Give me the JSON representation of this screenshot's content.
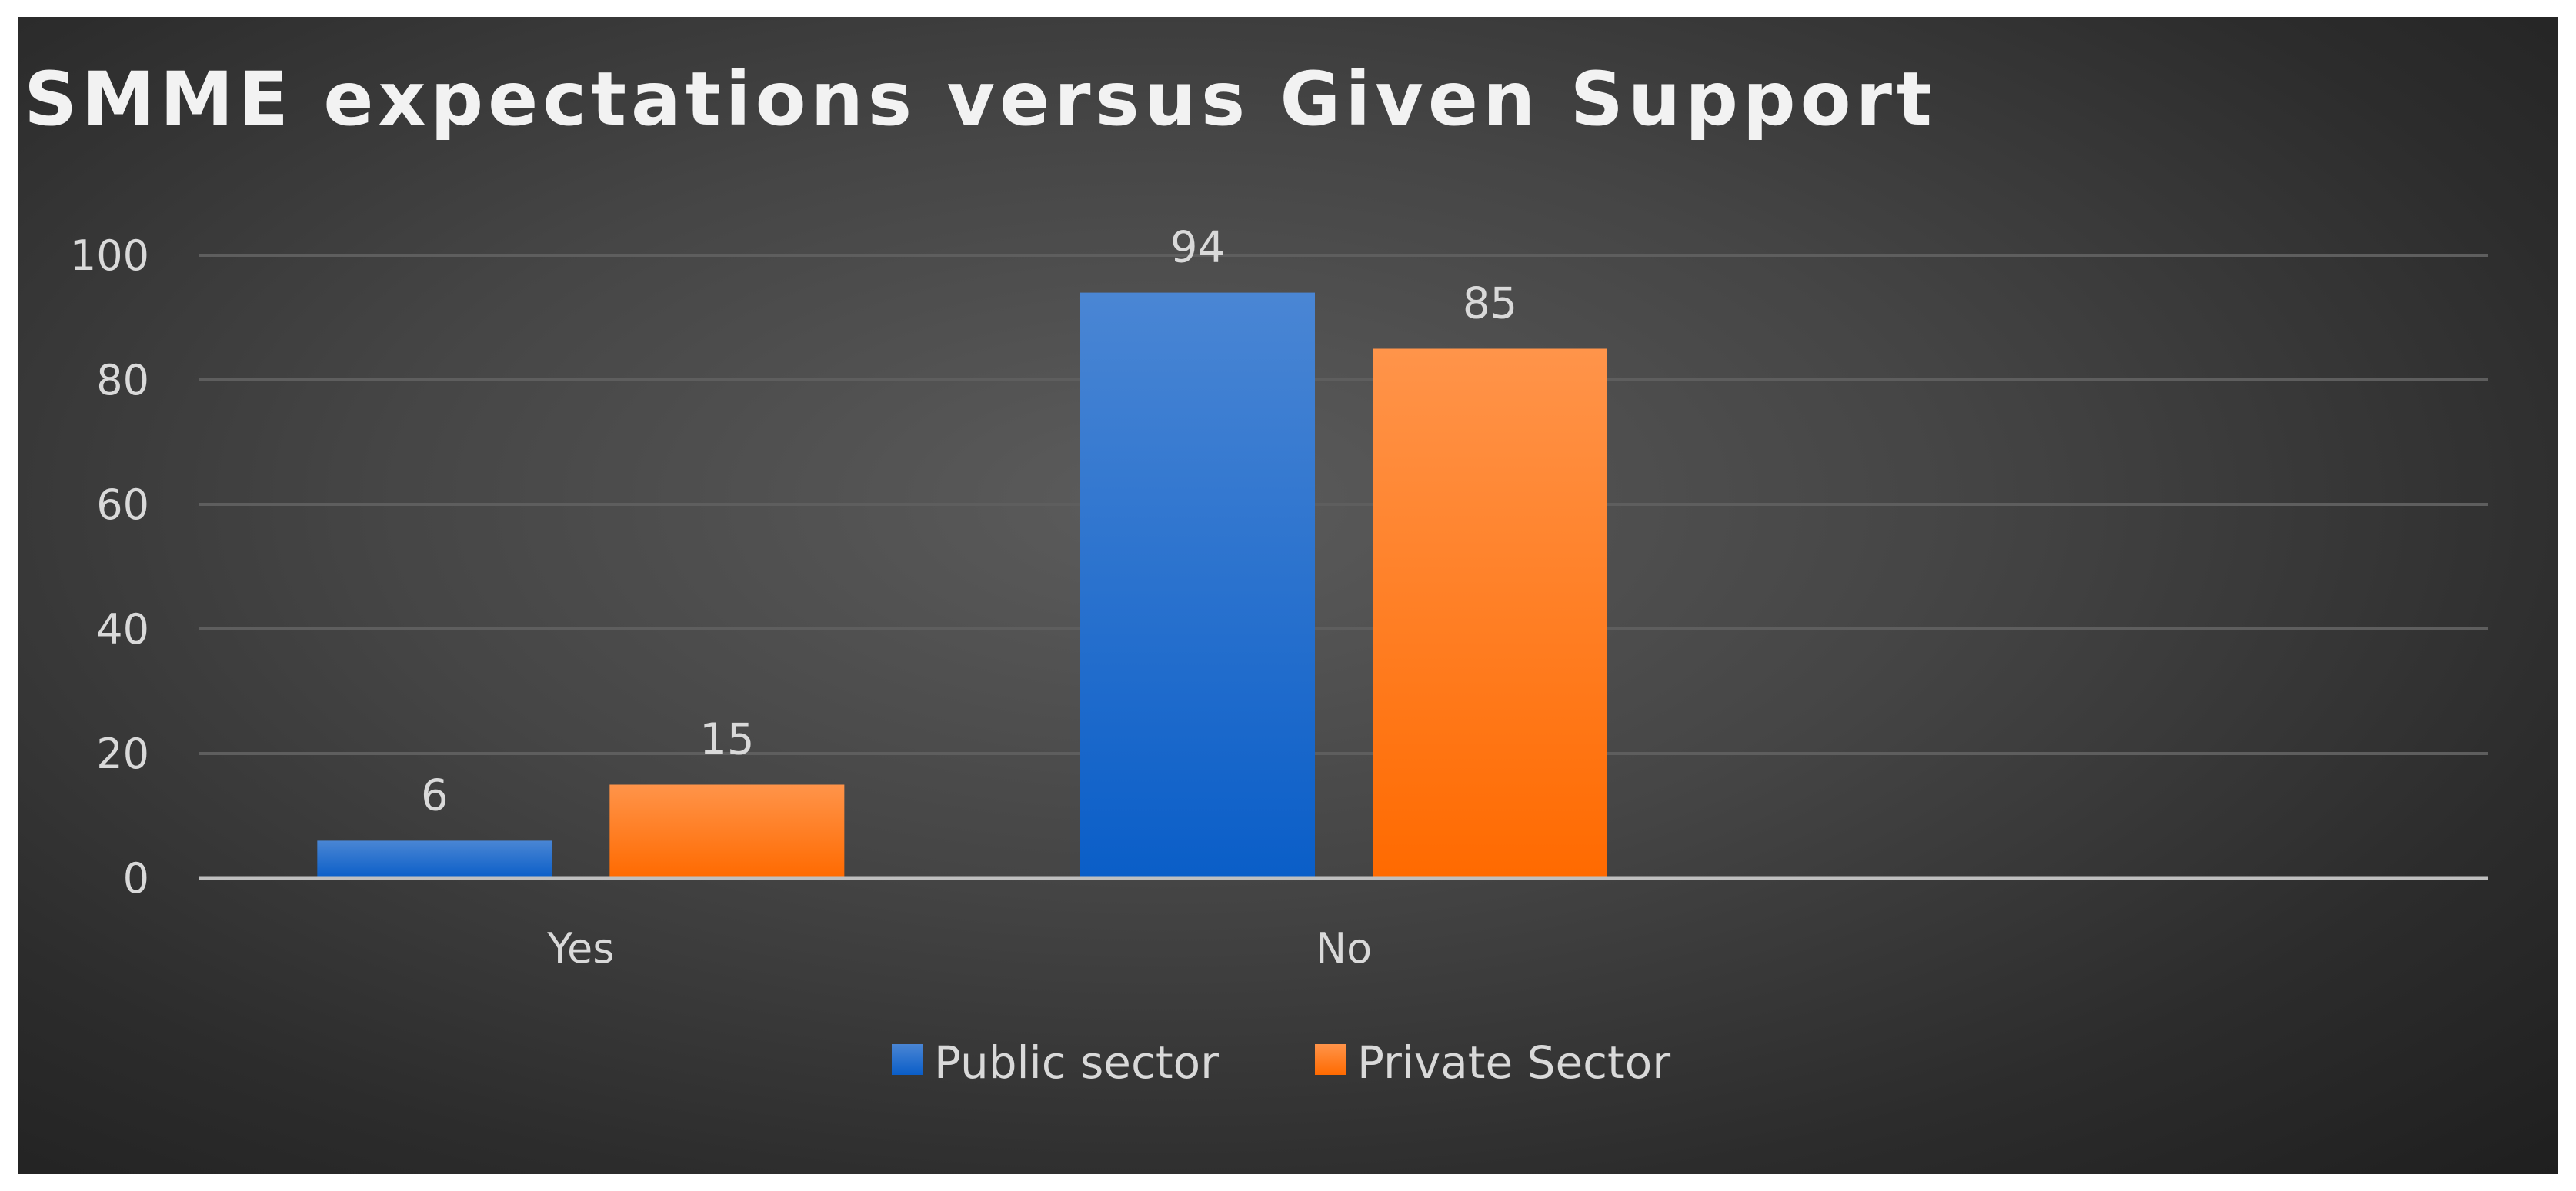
{
  "chart_data": {
    "type": "bar",
    "title": "SMME expectations versus Given Support",
    "xlabel": "",
    "ylabel": "",
    "categories": [
      "Yes",
      "No"
    ],
    "series": [
      {
        "name": "Public sector",
        "values": [
          6,
          94
        ],
        "color": "#1f6fd1",
        "color_top": "#4a86d4",
        "color_bottom": "#0a5ec8"
      },
      {
        "name": "Private Sector",
        "values": [
          15,
          85
        ],
        "color": "#ff7a1a",
        "color_top": "#ff944a",
        "color_bottom": "#ff6a00"
      }
    ],
    "ylim": [
      0,
      100
    ],
    "yticks": [
      0,
      20,
      40,
      60,
      80,
      100
    ],
    "grid": true,
    "legend_position": "bottom-center",
    "data_labels": true
  }
}
